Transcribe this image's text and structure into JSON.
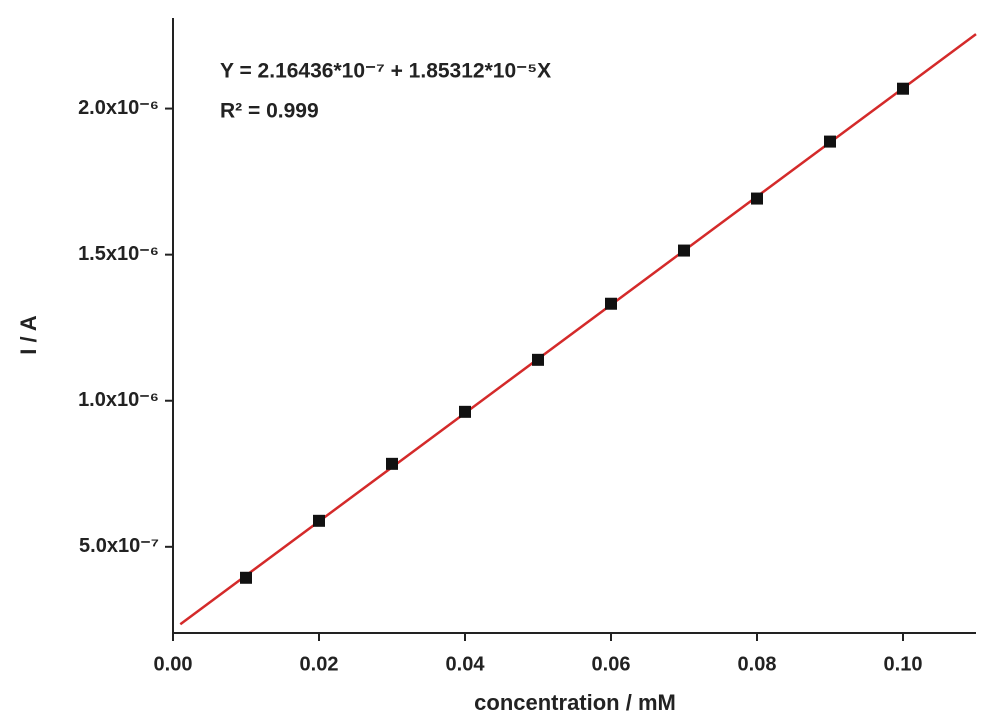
{
  "chart_data": {
    "type": "scatter",
    "xlabel": "concentration / mM",
    "ylabel": "I / A",
    "annotations": [
      "Y = 2.16436*10⁻⁷ + 1.85312*10⁻⁵X",
      "R² = 0.999"
    ],
    "x": [
      0.01,
      0.02,
      0.03,
      0.04,
      0.05,
      0.06,
      0.07,
      0.08,
      0.09,
      0.1
    ],
    "values": [
      3.94e-07,
      5.89e-07,
      7.84e-07,
      9.62e-07,
      1.14e-06,
      1.332e-06,
      1.514e-06,
      1.692e-06,
      1.887e-06,
      2.068e-06
    ],
    "color": "#111111",
    "fit": {
      "x": [
        0.001,
        0.11
      ],
      "values": [
        2.35e-07,
        2.2548e-06
      ],
      "color": "#d42a2a"
    },
    "xlim": [
      0,
      0.11
    ],
    "xticks": [
      {
        "value": 0,
        "label": "0.00"
      },
      0.02,
      0.04,
      0.06,
      0.08,
      {
        "value": 0.1,
        "label": "0.10"
      }
    ],
    "ylim": [
      2.05e-07,
      2.31e-06
    ],
    "yticks": [
      {
        "value": 5e-07,
        "label": "5.0x10⁻⁷"
      },
      {
        "value": 1e-06,
        "label": "1.0x10⁻⁶"
      },
      {
        "value": 1.5e-06,
        "label": "1.5x10⁻⁶"
      },
      {
        "value": 2e-06,
        "label": "2.0x10⁻⁶"
      }
    ]
  }
}
